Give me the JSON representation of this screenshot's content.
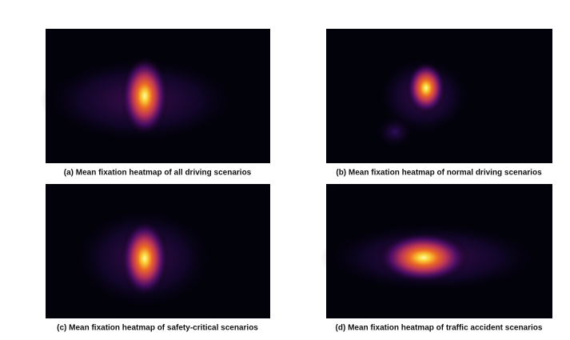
{
  "figure": {
    "panels": [
      {
        "caption": "(a) Mean fixation heatmap of all driving scenarios"
      },
      {
        "caption": "(b) Mean fixation heatmap of normal driving scenarios"
      },
      {
        "caption": "(c) Mean fixation heatmap of safety-critical scenarios"
      },
      {
        "caption": "(d) Mean fixation heatmap of traffic accident scenarios"
      }
    ]
  }
}
